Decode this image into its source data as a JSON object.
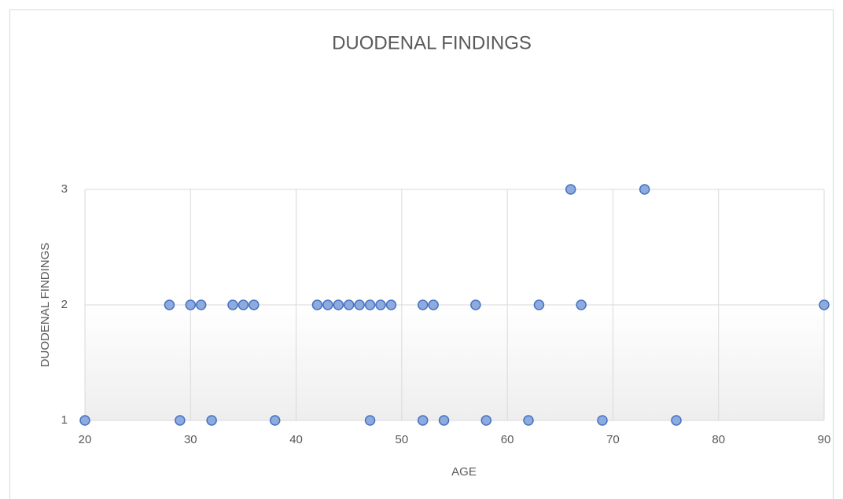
{
  "chart_data": {
    "type": "scatter",
    "title": "DUODENAL FINDINGS",
    "xlabel": "AGE",
    "ylabel": "DUODENAL FINDINGS",
    "x": [
      66,
      73,
      28,
      30,
      31,
      34,
      35,
      36,
      42,
      43,
      44,
      45,
      46,
      47,
      48,
      49,
      52,
      53,
      57,
      63,
      67,
      90,
      20,
      29,
      32,
      38,
      47,
      52,
      54,
      58,
      62,
      69,
      76
    ],
    "values": [
      3,
      3,
      2,
      2,
      2,
      2,
      2,
      2,
      2,
      2,
      2,
      2,
      2,
      2,
      2,
      2,
      2,
      2,
      2,
      2,
      2,
      2,
      1,
      1,
      1,
      1,
      1,
      1,
      1,
      1,
      1,
      1,
      1
    ],
    "color": "#8faadc",
    "xlim": [
      20,
      90
    ],
    "xticks": [
      20,
      30,
      40,
      50,
      60,
      70,
      80,
      90
    ],
    "ylim": [
      1,
      3
    ],
    "yticks": [
      1,
      2,
      3
    ],
    "grid": true
  }
}
